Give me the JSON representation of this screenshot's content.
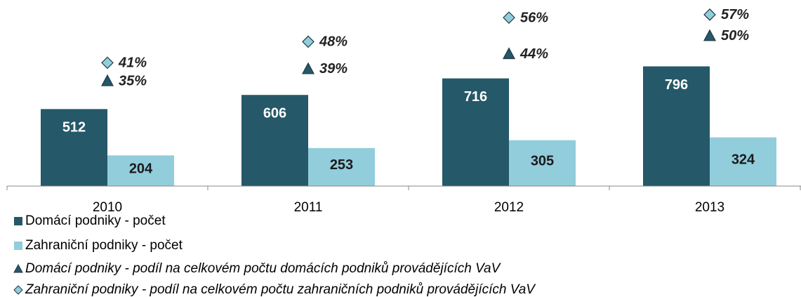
{
  "chart_data": {
    "type": "bar",
    "categories": [
      "2010",
      "2011",
      "2012",
      "2013"
    ],
    "ylim": [
      0,
      1200
    ],
    "y2lim": [
      0,
      60
    ],
    "series": [
      {
        "name": "Domácí podniky - počet",
        "color": "#255868",
        "values": [
          512,
          606,
          716,
          796
        ]
      },
      {
        "name": "Zahraniční podniky - počet",
        "color": "#92cddc",
        "values": [
          204,
          253,
          305,
          324
        ]
      },
      {
        "name": "Domácí podniky - podíl na celkovém počtu domácích podniků provádějících VaV",
        "color": "#255868",
        "type": "scatter",
        "marker": "triangle",
        "axis": "y2",
        "values": [
          35,
          39,
          44,
          50
        ],
        "value_labels": [
          "35%",
          "39%",
          "44%",
          "50%"
        ]
      },
      {
        "name": "Zahraniční podniky - podíl na celkovém počtu zahraničních podniků provádějících VaV",
        "color": "#92cddc",
        "type": "scatter",
        "marker": "diamond",
        "axis": "y2",
        "values": [
          41,
          48,
          56,
          57
        ],
        "value_labels": [
          "41%",
          "48%",
          "56%",
          "57%"
        ]
      }
    ]
  }
}
